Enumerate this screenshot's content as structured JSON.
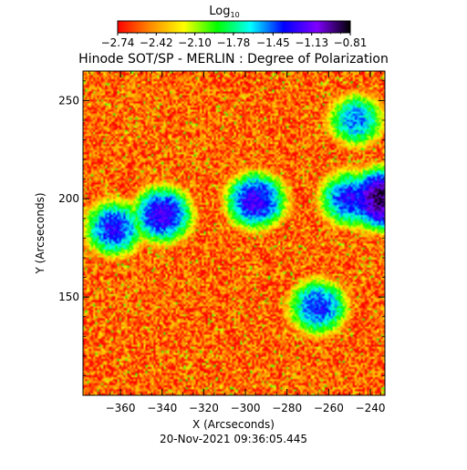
{
  "chart_data": {
    "type": "heatmap",
    "title": "Hinode SOT/SP - MERLIN : Degree of Polarization",
    "colorbar": {
      "label_base": "Log",
      "label_sub": "10",
      "ticks": [
        -2.74,
        -2.42,
        -2.1,
        -1.78,
        -1.45,
        -1.13,
        -0.81
      ],
      "tick_labels": [
        "−2.74",
        "−2.42",
        "−2.10",
        "−1.78",
        "−1.45",
        "−1.13",
        "−0.81"
      ],
      "range": [
        -2.74,
        -0.81
      ],
      "colormap": [
        "#ff0000",
        "#ff8c00",
        "#ffff00",
        "#00ff00",
        "#00ffff",
        "#0000ff",
        "#8000ff",
        "#000000"
      ]
    },
    "xlabel": "X (Arcseconds)",
    "ylabel": "Y (Arcseconds)",
    "xticks": [
      -360,
      -340,
      -320,
      -300,
      -280,
      -260,
      -240
    ],
    "xtick_labels": [
      "−360",
      "−340",
      "−320",
      "−300",
      "−280",
      "−260",
      "−240"
    ],
    "yticks": [
      150,
      200,
      250
    ],
    "ytick_labels": [
      "150",
      "200",
      "250"
    ],
    "xlim": [
      -378,
      -233
    ],
    "ylim": [
      100,
      265
    ],
    "background_level": -2.55,
    "features": [
      {
        "x": -340,
        "y": 192,
        "value": -1.2
      },
      {
        "x": -363,
        "y": 185,
        "value": -1.3
      },
      {
        "x": -295,
        "y": 199,
        "value": -1.2
      },
      {
        "x": -250,
        "y": 200,
        "value": -1.3
      },
      {
        "x": -235,
        "y": 200,
        "value": -0.9
      },
      {
        "x": -265,
        "y": 145,
        "value": -1.35
      },
      {
        "x": -247,
        "y": 240,
        "value": -1.5
      }
    ],
    "timestamp": "20-Nov-2021 09:36:05.445"
  }
}
